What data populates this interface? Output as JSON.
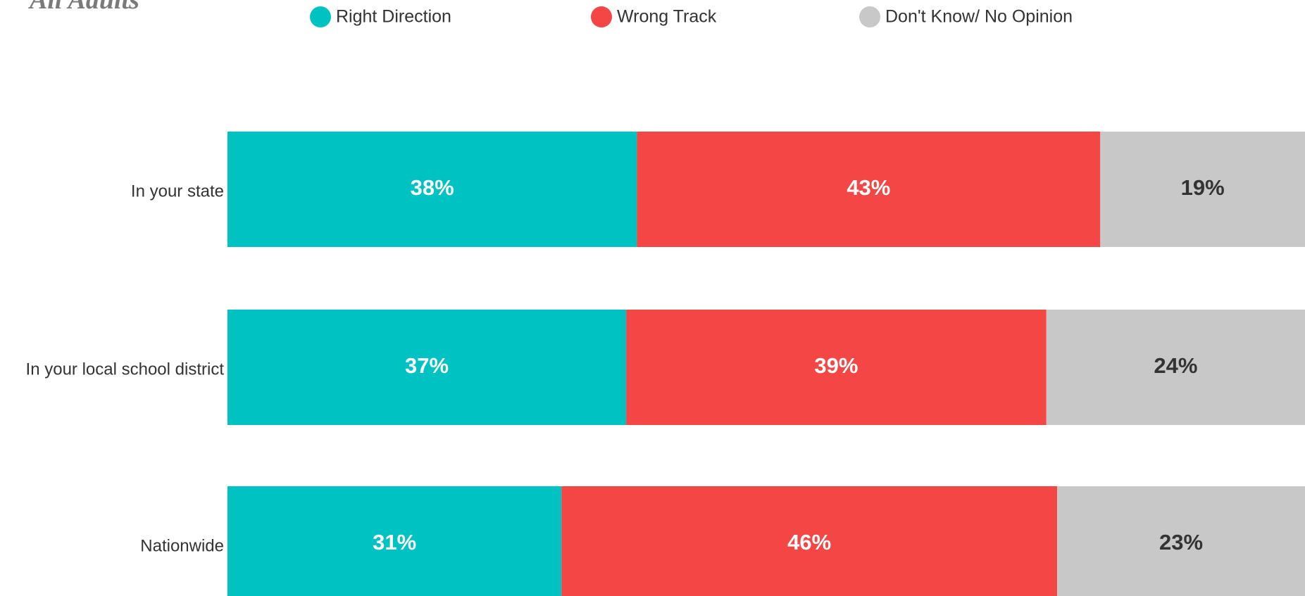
{
  "chart_data": {
    "type": "stacked-bar-horizontal",
    "title": "All Adults",
    "categories": [
      "In your state",
      "In your local school district",
      "Nationwide"
    ],
    "series": [
      {
        "name": "Right Direction",
        "color": "#00c2c2",
        "values": [
          38,
          37,
          31
        ],
        "value_labels": [
          "38%",
          "37%",
          "31%"
        ]
      },
      {
        "name": "Wrong Track",
        "color": "#f54646",
        "values": [
          43,
          39,
          46
        ],
        "value_labels": [
          "43%",
          "39%",
          "46%"
        ]
      },
      {
        "name": "Don't Know/ No Opinion",
        "color": "#c8c8c8",
        "values": [
          19,
          24,
          23
        ],
        "value_labels": [
          "19%",
          "24%",
          "23%"
        ]
      }
    ],
    "legend": "top"
  }
}
